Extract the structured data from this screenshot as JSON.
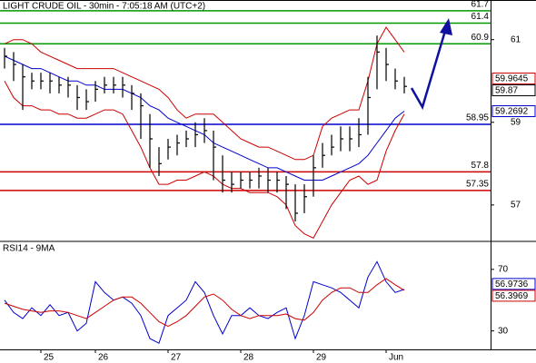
{
  "chart_data": [
    {
      "type": "ohlc",
      "title": "LIGHT CRUDE OIL - 30min - 7:05:18 AM (UTC+2)",
      "ylim": [
        56.14,
        61.96
      ],
      "yticks": [
        61,
        59,
        57
      ],
      "color": "#000000",
      "high": [
        60.8,
        60.7,
        60.4,
        60.2,
        60.2,
        60.2,
        60.1,
        60.1,
        59.9,
        59.8,
        60.0,
        60.1,
        60.1,
        60.1,
        59.9,
        59.7,
        59.2,
        58.4,
        58.6,
        58.7,
        58.8,
        59.0,
        59.1,
        58.8,
        58.2,
        57.8,
        57.8,
        57.8,
        57.9,
        57.9,
        57.8,
        57.7,
        57.5,
        57.5,
        58.2,
        58.5,
        58.7,
        58.9,
        58.9,
        59.1,
        60.1,
        61.1,
        60.8,
        60.3,
        60.1
      ],
      "low": [
        60.3,
        60.0,
        59.3,
        59.8,
        59.8,
        59.7,
        59.7,
        59.6,
        59.3,
        59.3,
        59.5,
        59.7,
        59.7,
        59.6,
        59.3,
        58.6,
        57.9,
        57.7,
        58.1,
        58.2,
        58.4,
        58.4,
        58.5,
        57.6,
        57.3,
        57.3,
        57.4,
        57.4,
        57.4,
        57.3,
        57.3,
        56.9,
        56.6,
        56.8,
        57.2,
        57.9,
        58.2,
        58.3,
        58.3,
        58.4,
        58.7,
        59.8,
        60.0,
        59.8,
        59.7
      ],
      "close": [
        60.6,
        60.4,
        60.1,
        60.0,
        60.0,
        60.0,
        59.9,
        59.9,
        59.6,
        59.5,
        59.8,
        59.9,
        59.9,
        59.9,
        59.7,
        59.4,
        58.6,
        58.0,
        58.4,
        58.5,
        58.6,
        58.7,
        58.8,
        58.4,
        57.6,
        57.5,
        57.6,
        57.6,
        57.7,
        57.6,
        57.6,
        57.5,
        56.8,
        57.2,
        57.9,
        58.2,
        58.4,
        58.6,
        58.6,
        58.7,
        59.6,
        60.7,
        60.4,
        60.0,
        59.87
      ],
      "bands": [
        {
          "color": "#cc0000",
          "values": [
            60.9,
            61.0,
            61.0,
            60.9,
            60.7,
            60.6,
            60.5,
            60.4,
            60.3,
            60.3,
            60.3,
            60.3,
            60.3,
            60.2,
            60.1,
            60.0,
            59.9,
            59.8,
            59.6,
            59.3,
            59.1,
            59.2,
            59.2,
            59.2,
            59.0,
            58.8,
            58.6,
            58.5,
            58.4,
            58.4,
            58.3,
            58.2,
            58.1,
            58.1,
            58.2,
            58.9,
            59.1,
            59.2,
            59.3,
            59.3,
            60.0,
            60.9,
            61.3,
            61.0,
            60.7
          ]
        },
        {
          "color": "#cc0000",
          "values": [
            60.0,
            59.6,
            59.4,
            59.4,
            59.3,
            59.3,
            59.2,
            59.2,
            59.1,
            59.1,
            59.2,
            59.3,
            59.3,
            59.2,
            58.8,
            58.4,
            57.9,
            57.5,
            57.5,
            57.6,
            57.6,
            57.7,
            57.8,
            57.7,
            57.5,
            57.4,
            57.4,
            57.3,
            57.3,
            57.3,
            57.2,
            57.0,
            56.5,
            56.3,
            56.2,
            56.6,
            57.0,
            57.3,
            57.6,
            57.7,
            57.5,
            57.6,
            58.3,
            58.8,
            59.2
          ]
        },
        {
          "color": "#0000cc",
          "values": [
            60.6,
            60.5,
            60.4,
            60.3,
            60.3,
            60.2,
            60.1,
            60.0,
            60.0,
            59.9,
            59.9,
            59.8,
            59.8,
            59.8,
            59.7,
            59.6,
            59.4,
            59.3,
            59.1,
            59.0,
            58.9,
            58.8,
            58.7,
            58.5,
            58.4,
            58.3,
            58.2,
            58.1,
            58.0,
            57.9,
            57.9,
            57.8,
            57.7,
            57.6,
            57.6,
            57.6,
            57.7,
            57.8,
            57.9,
            58.0,
            58.2,
            58.5,
            58.8,
            59.1,
            59.2692
          ]
        }
      ],
      "levels": [
        {
          "value": 61.7,
          "color": "#009900"
        },
        {
          "value": 61.4,
          "color": "#009900"
        },
        {
          "value": 60.9,
          "color": "#009900"
        },
        {
          "value": 58.95,
          "color": "#0000cc"
        },
        {
          "value": 57.8,
          "color": "#cc0000"
        },
        {
          "value": 57.35,
          "color": "#cc0000"
        }
      ],
      "price_labels": [
        {
          "value": 59.9645,
          "color": "#cc0000"
        },
        {
          "value": 59.87,
          "color": "#000000"
        },
        {
          "value": 59.2692,
          "color": "#0000cc"
        }
      ]
    },
    {
      "type": "line",
      "title": "RSI14 - 9MA",
      "categories": [
        null,
        null,
        null,
        null,
        null,
        "25",
        null,
        null,
        null,
        null,
        null,
        "26",
        null,
        null,
        null,
        null,
        null,
        null,
        null,
        "27",
        null,
        null,
        null,
        null,
        null,
        null,
        null,
        "28",
        null,
        null,
        null,
        null,
        null,
        null,
        null,
        "29",
        null,
        null,
        null,
        null,
        null,
        null,
        null,
        "Jun",
        null
      ],
      "ylim": [
        18,
        87
      ],
      "yticks": [
        70,
        30
      ],
      "series": [
        {
          "color": "#0000cc",
          "values": [
            50,
            42,
            38,
            45,
            40,
            47,
            40,
            42,
            30,
            35,
            62,
            55,
            50,
            52,
            48,
            40,
            25,
            22,
            40,
            45,
            50,
            62,
            55,
            40,
            28,
            40,
            40,
            45,
            40,
            38,
            42,
            45,
            25,
            40,
            62,
            60,
            58,
            55,
            50,
            45,
            65,
            75,
            62,
            55,
            56.9736
          ]
        },
        {
          "color": "#cc0000",
          "values": [
            48,
            46,
            44,
            43,
            42,
            43,
            43,
            42,
            40,
            38,
            42,
            46,
            50,
            52,
            52,
            48,
            42,
            36,
            33,
            36,
            40,
            46,
            52,
            54,
            50,
            44,
            40,
            38,
            40,
            40,
            40,
            41,
            38,
            37,
            42,
            50,
            55,
            58,
            58,
            55,
            55,
            60,
            64,
            60,
            56.3969
          ]
        }
      ],
      "last_labels": [
        {
          "value": 56.9736,
          "color": "#0000cc"
        },
        {
          "value": 56.3969,
          "color": "#cc0000"
        }
      ]
    }
  ]
}
